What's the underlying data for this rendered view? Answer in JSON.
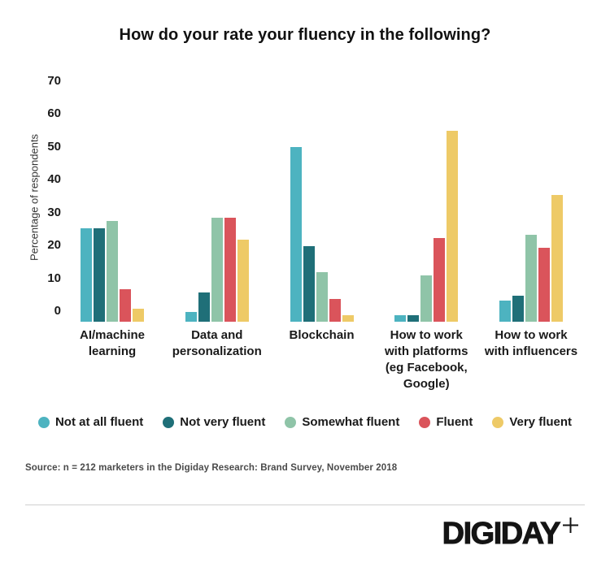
{
  "title": "How do your rate your fluency in the following?",
  "chart_data": {
    "type": "bar",
    "title": "How do your rate your fluency in the following?",
    "xlabel": "",
    "ylabel": "Percentage of respondents",
    "ylim": [
      0,
      70
    ],
    "yticks": [
      0,
      10,
      20,
      30,
      40,
      50,
      60,
      70
    ],
    "grid": false,
    "legend_position": "bottom",
    "categories": [
      "AI/machine learning",
      "Data and personalization",
      "Blockchain",
      "How to work with platforms (eg Facebook, Google)",
      "How to work with influencers"
    ],
    "category_lines": [
      [
        "AI/machine",
        "learning"
      ],
      [
        "Data and",
        "personalization"
      ],
      [
        "Blockchain"
      ],
      [
        "How to work",
        "with platforms",
        "(eg Facebook,",
        "Google)"
      ],
      [
        "How to work",
        "with influencers"
      ]
    ],
    "series": [
      {
        "name": "Not at all fluent",
        "color": "#4db3c0",
        "values": [
          28.5,
          3,
          53,
          2,
          6.5
        ]
      },
      {
        "name": "Not very fluent",
        "color": "#1f6f78",
        "values": [
          28.5,
          9,
          23,
          2,
          8
        ]
      },
      {
        "name": "Somewhat fluent",
        "color": "#8fc4a8",
        "values": [
          30.5,
          31.5,
          15,
          14,
          26.5
        ]
      },
      {
        "name": "Fluent",
        "color": "#da545b",
        "values": [
          10,
          31.5,
          7,
          25.5,
          22.5
        ]
      },
      {
        "name": "Very fluent",
        "color": "#eeca67",
        "values": [
          4,
          25,
          2,
          58,
          38.5
        ]
      }
    ]
  },
  "source": "Source: n = 212 marketers in the Digiday Research: Brand Survey, November 2018",
  "footer": {
    "brand": "DIGIDAY",
    "plus_icon": "+"
  }
}
